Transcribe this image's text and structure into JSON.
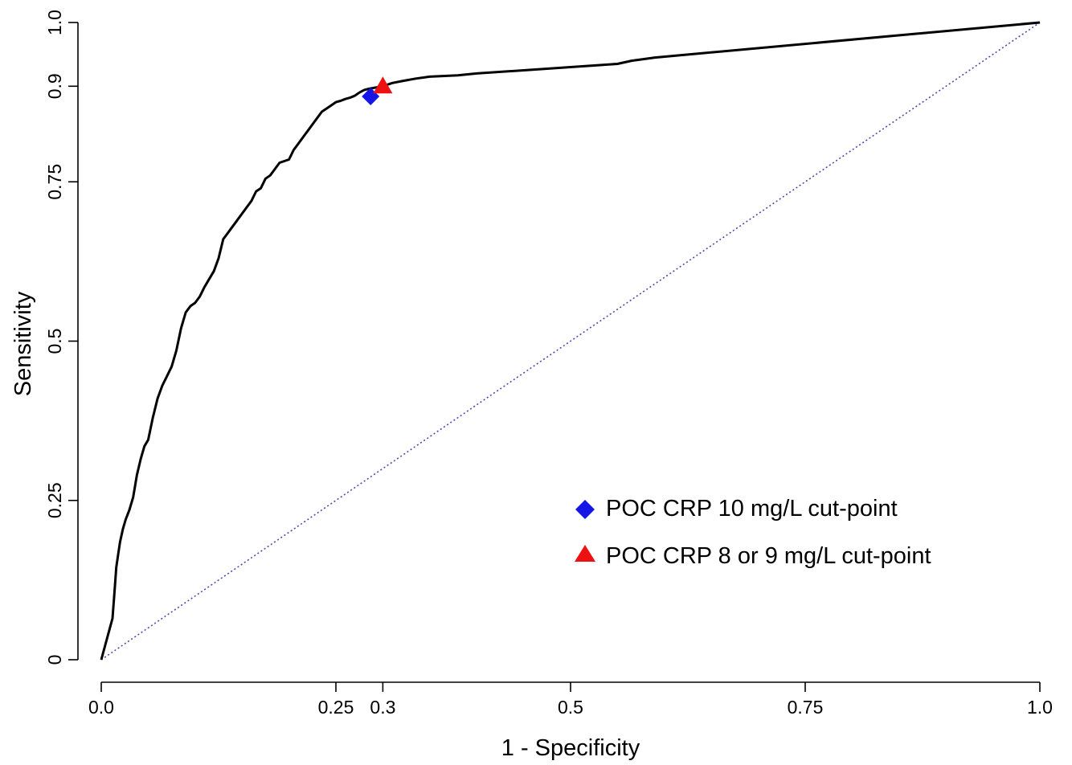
{
  "chart_data": {
    "type": "line",
    "title": "",
    "xlabel": "1 - Specificity",
    "ylabel": "Sensitivity",
    "xlim": [
      0,
      1
    ],
    "ylim": [
      0,
      1
    ],
    "x_ticks": [
      {
        "value": 0.0,
        "label": "0.0"
      },
      {
        "value": 0.25,
        "label": "0.25"
      },
      {
        "value": 0.3,
        "label": "0.3"
      },
      {
        "value": 0.5,
        "label": "0.5"
      },
      {
        "value": 0.75,
        "label": "0.75"
      },
      {
        "value": 1.0,
        "label": "1.0"
      }
    ],
    "y_ticks": [
      {
        "value": 0,
        "label": "0"
      },
      {
        "value": 0.25,
        "label": "0.25"
      },
      {
        "value": 0.5,
        "label": "0.5"
      },
      {
        "value": 0.75,
        "label": "0.75"
      },
      {
        "value": 0.9,
        "label": "0.9"
      },
      {
        "value": 1.0,
        "label": "1.0"
      }
    ],
    "grid": false,
    "legend_position": "bottom-right",
    "series": [
      {
        "type": "step-line",
        "color": "#000000",
        "x": [
          0.0,
          0.012,
          0.014,
          0.016,
          0.018,
          0.02,
          0.023,
          0.026,
          0.03,
          0.034,
          0.038,
          0.042,
          0.046,
          0.05,
          0.055,
          0.06,
          0.065,
          0.07,
          0.075,
          0.08,
          0.085,
          0.09,
          0.095,
          0.1,
          0.105,
          0.11,
          0.12,
          0.125,
          0.13,
          0.135,
          0.14,
          0.145,
          0.15,
          0.155,
          0.16,
          0.165,
          0.17,
          0.175,
          0.18,
          0.185,
          0.19,
          0.2,
          0.205,
          0.21,
          0.215,
          0.22,
          0.225,
          0.23,
          0.235,
          0.24,
          0.245,
          0.25,
          0.255,
          0.26,
          0.265,
          0.27,
          0.275,
          0.28,
          0.285,
          0.3,
          0.31,
          0.32,
          0.335,
          0.35,
          0.38,
          0.4,
          0.45,
          0.5,
          0.55,
          0.565,
          0.59,
          1.0
        ],
        "y": [
          0.0,
          0.065,
          0.105,
          0.145,
          0.165,
          0.185,
          0.205,
          0.22,
          0.235,
          0.255,
          0.29,
          0.315,
          0.335,
          0.345,
          0.38,
          0.41,
          0.43,
          0.445,
          0.46,
          0.485,
          0.52,
          0.545,
          0.555,
          0.56,
          0.57,
          0.585,
          0.61,
          0.63,
          0.66,
          0.67,
          0.68,
          0.69,
          0.7,
          0.71,
          0.72,
          0.735,
          0.74,
          0.755,
          0.76,
          0.77,
          0.78,
          0.785,
          0.8,
          0.81,
          0.82,
          0.83,
          0.84,
          0.85,
          0.86,
          0.865,
          0.87,
          0.875,
          0.877,
          0.88,
          0.882,
          0.885,
          0.89,
          0.894,
          0.896,
          0.9,
          0.905,
          0.908,
          0.912,
          0.915,
          0.917,
          0.92,
          0.925,
          0.93,
          0.935,
          0.94,
          0.945,
          1.0
        ]
      },
      {
        "type": "reference-line",
        "color": "#4b4bb0",
        "dashed": true,
        "x": [
          0.0,
          1.0
        ],
        "y": [
          0.0,
          1.0
        ]
      }
    ],
    "markers": [
      {
        "name": "POC CRP 10 mg/L cut-point",
        "shape": "diamond",
        "color": "#1515e6",
        "x": 0.287,
        "y": 0.884
      },
      {
        "name": "POC CRP 8 or 9 mg/L cut-point",
        "shape": "triangle",
        "color": "#ee1111",
        "x": 0.3,
        "y": 0.9
      }
    ]
  }
}
